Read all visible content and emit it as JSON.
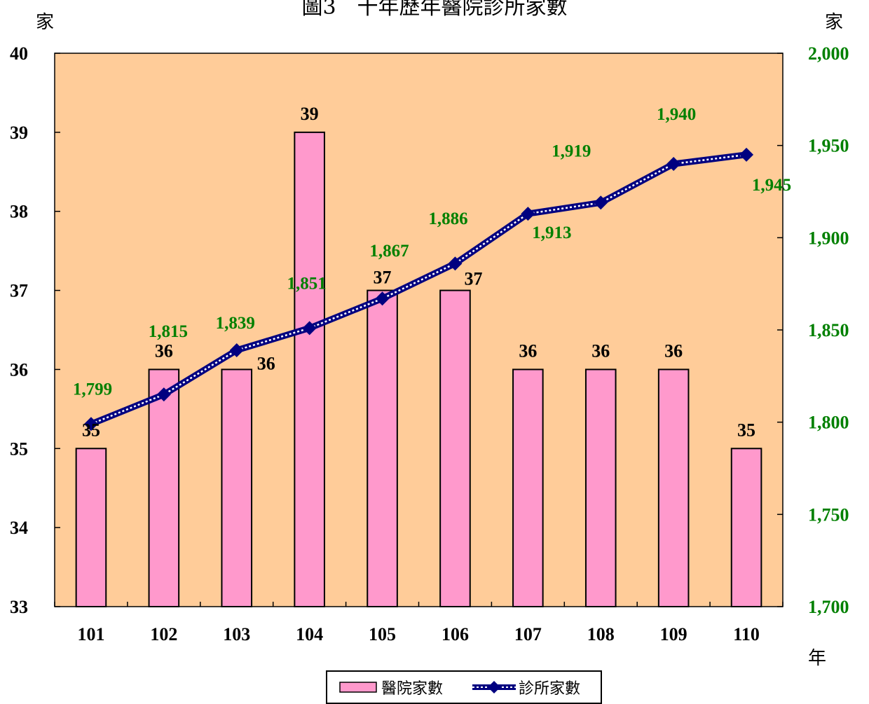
{
  "title": "圖3　十年歷年醫院診所家數",
  "chart_data": {
    "type": "bar",
    "categories": [
      "101",
      "102",
      "103",
      "104",
      "105",
      "106",
      "107",
      "108",
      "109",
      "110"
    ],
    "series": [
      {
        "name": "醫院家數",
        "type": "bar",
        "axis": "left",
        "color": "#ff99cc",
        "values": [
          35,
          36,
          36,
          39,
          37,
          37,
          36,
          36,
          36,
          35
        ]
      },
      {
        "name": "診所家數",
        "type": "line",
        "axis": "right",
        "color": "#000080",
        "label_color": "#008000",
        "values": [
          1799,
          1815,
          1839,
          1851,
          1867,
          1886,
          1913,
          1919,
          1940,
          1945
        ]
      }
    ],
    "y_left": {
      "unit": "家",
      "ylim": [
        33,
        40
      ],
      "ticks": [
        33,
        34,
        35,
        36,
        37,
        38,
        39,
        40
      ]
    },
    "y_right": {
      "unit": "家",
      "ylim": [
        1700,
        2000
      ],
      "ticks": [
        1700,
        1750,
        1800,
        1850,
        1900,
        1950,
        2000
      ]
    },
    "x_unit": "年",
    "plot_background": "#ffcc99",
    "grid": false,
    "legend_position": "bottom"
  }
}
